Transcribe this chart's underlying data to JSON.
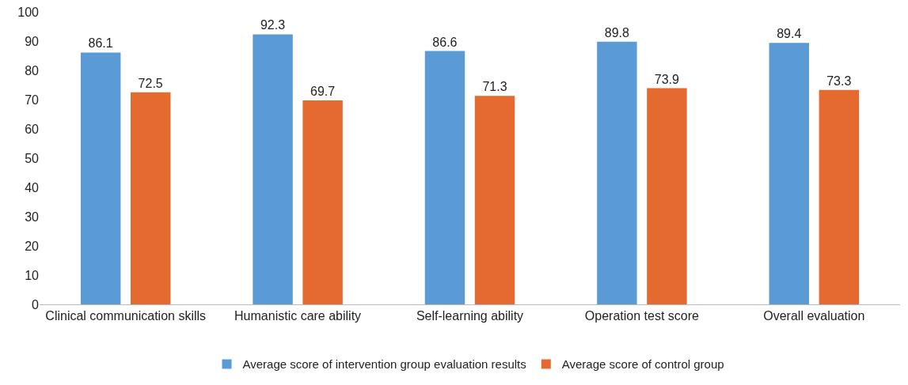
{
  "chart_data": {
    "type": "bar",
    "categories": [
      "Clinical communication skills",
      "Humanistic care ability",
      "Self-learning ability",
      "Operation test score",
      "Overall evaluation"
    ],
    "series": [
      {
        "name": "Average score of intervention group evaluation results",
        "color": "#5b9bd5",
        "values": [
          86.1,
          92.3,
          86.6,
          89.8,
          89.4
        ]
      },
      {
        "name": "Average score of control group",
        "color": "#e46a30",
        "values": [
          72.5,
          69.7,
          71.3,
          73.9,
          73.3
        ]
      }
    ],
    "ylim": [
      0,
      100
    ],
    "yticks": [
      0,
      10,
      20,
      30,
      40,
      50,
      60,
      70,
      80,
      90,
      100
    ],
    "grid": false,
    "legend": "bottom",
    "data_labels": true
  }
}
